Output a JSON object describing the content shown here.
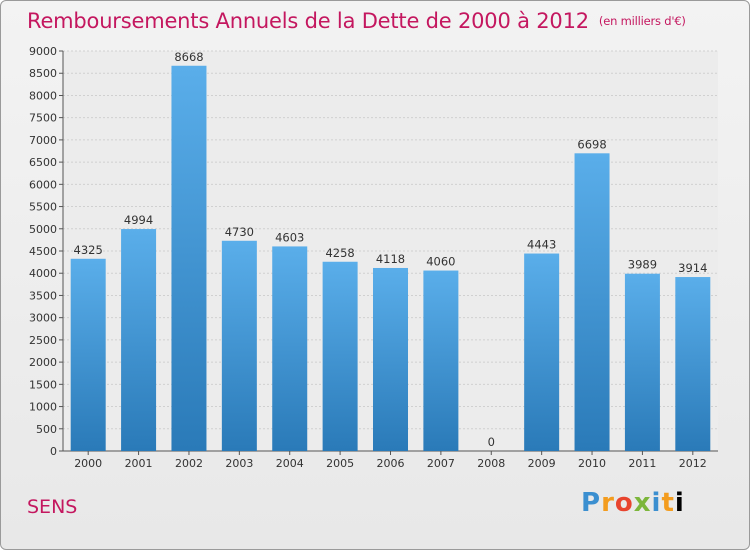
{
  "header": {
    "title": "Remboursements Annuels de la Dette de 2000 à 2012",
    "unit": "(en milliers d'€)"
  },
  "footer": {
    "commune": "SENS",
    "brand_letters": [
      "P",
      "r",
      "o",
      "x",
      "i",
      "t",
      "i"
    ]
  },
  "colors": {
    "title": "#c4175f",
    "bar_top": "#5aaeea",
    "bar_bottom": "#2a7ab8"
  },
  "chart_data": {
    "type": "bar",
    "title": "Remboursements Annuels de la Dette de 2000 à 2012",
    "categories": [
      "2000",
      "2001",
      "2002",
      "2003",
      "2004",
      "2005",
      "2006",
      "2007",
      "2008",
      "2009",
      "2010",
      "2011",
      "2012"
    ],
    "values": [
      4325,
      4994,
      8668,
      4730,
      4603,
      4258,
      4118,
      4060,
      0,
      4443,
      6698,
      3989,
      3914
    ],
    "ylim": [
      0,
      9000
    ],
    "yticks": [
      0,
      500,
      1000,
      1500,
      2000,
      2500,
      3000,
      3500,
      4000,
      4500,
      5000,
      5500,
      6000,
      6500,
      7000,
      7500,
      8000,
      8500,
      9000
    ],
    "grid": true,
    "legend": "none"
  }
}
